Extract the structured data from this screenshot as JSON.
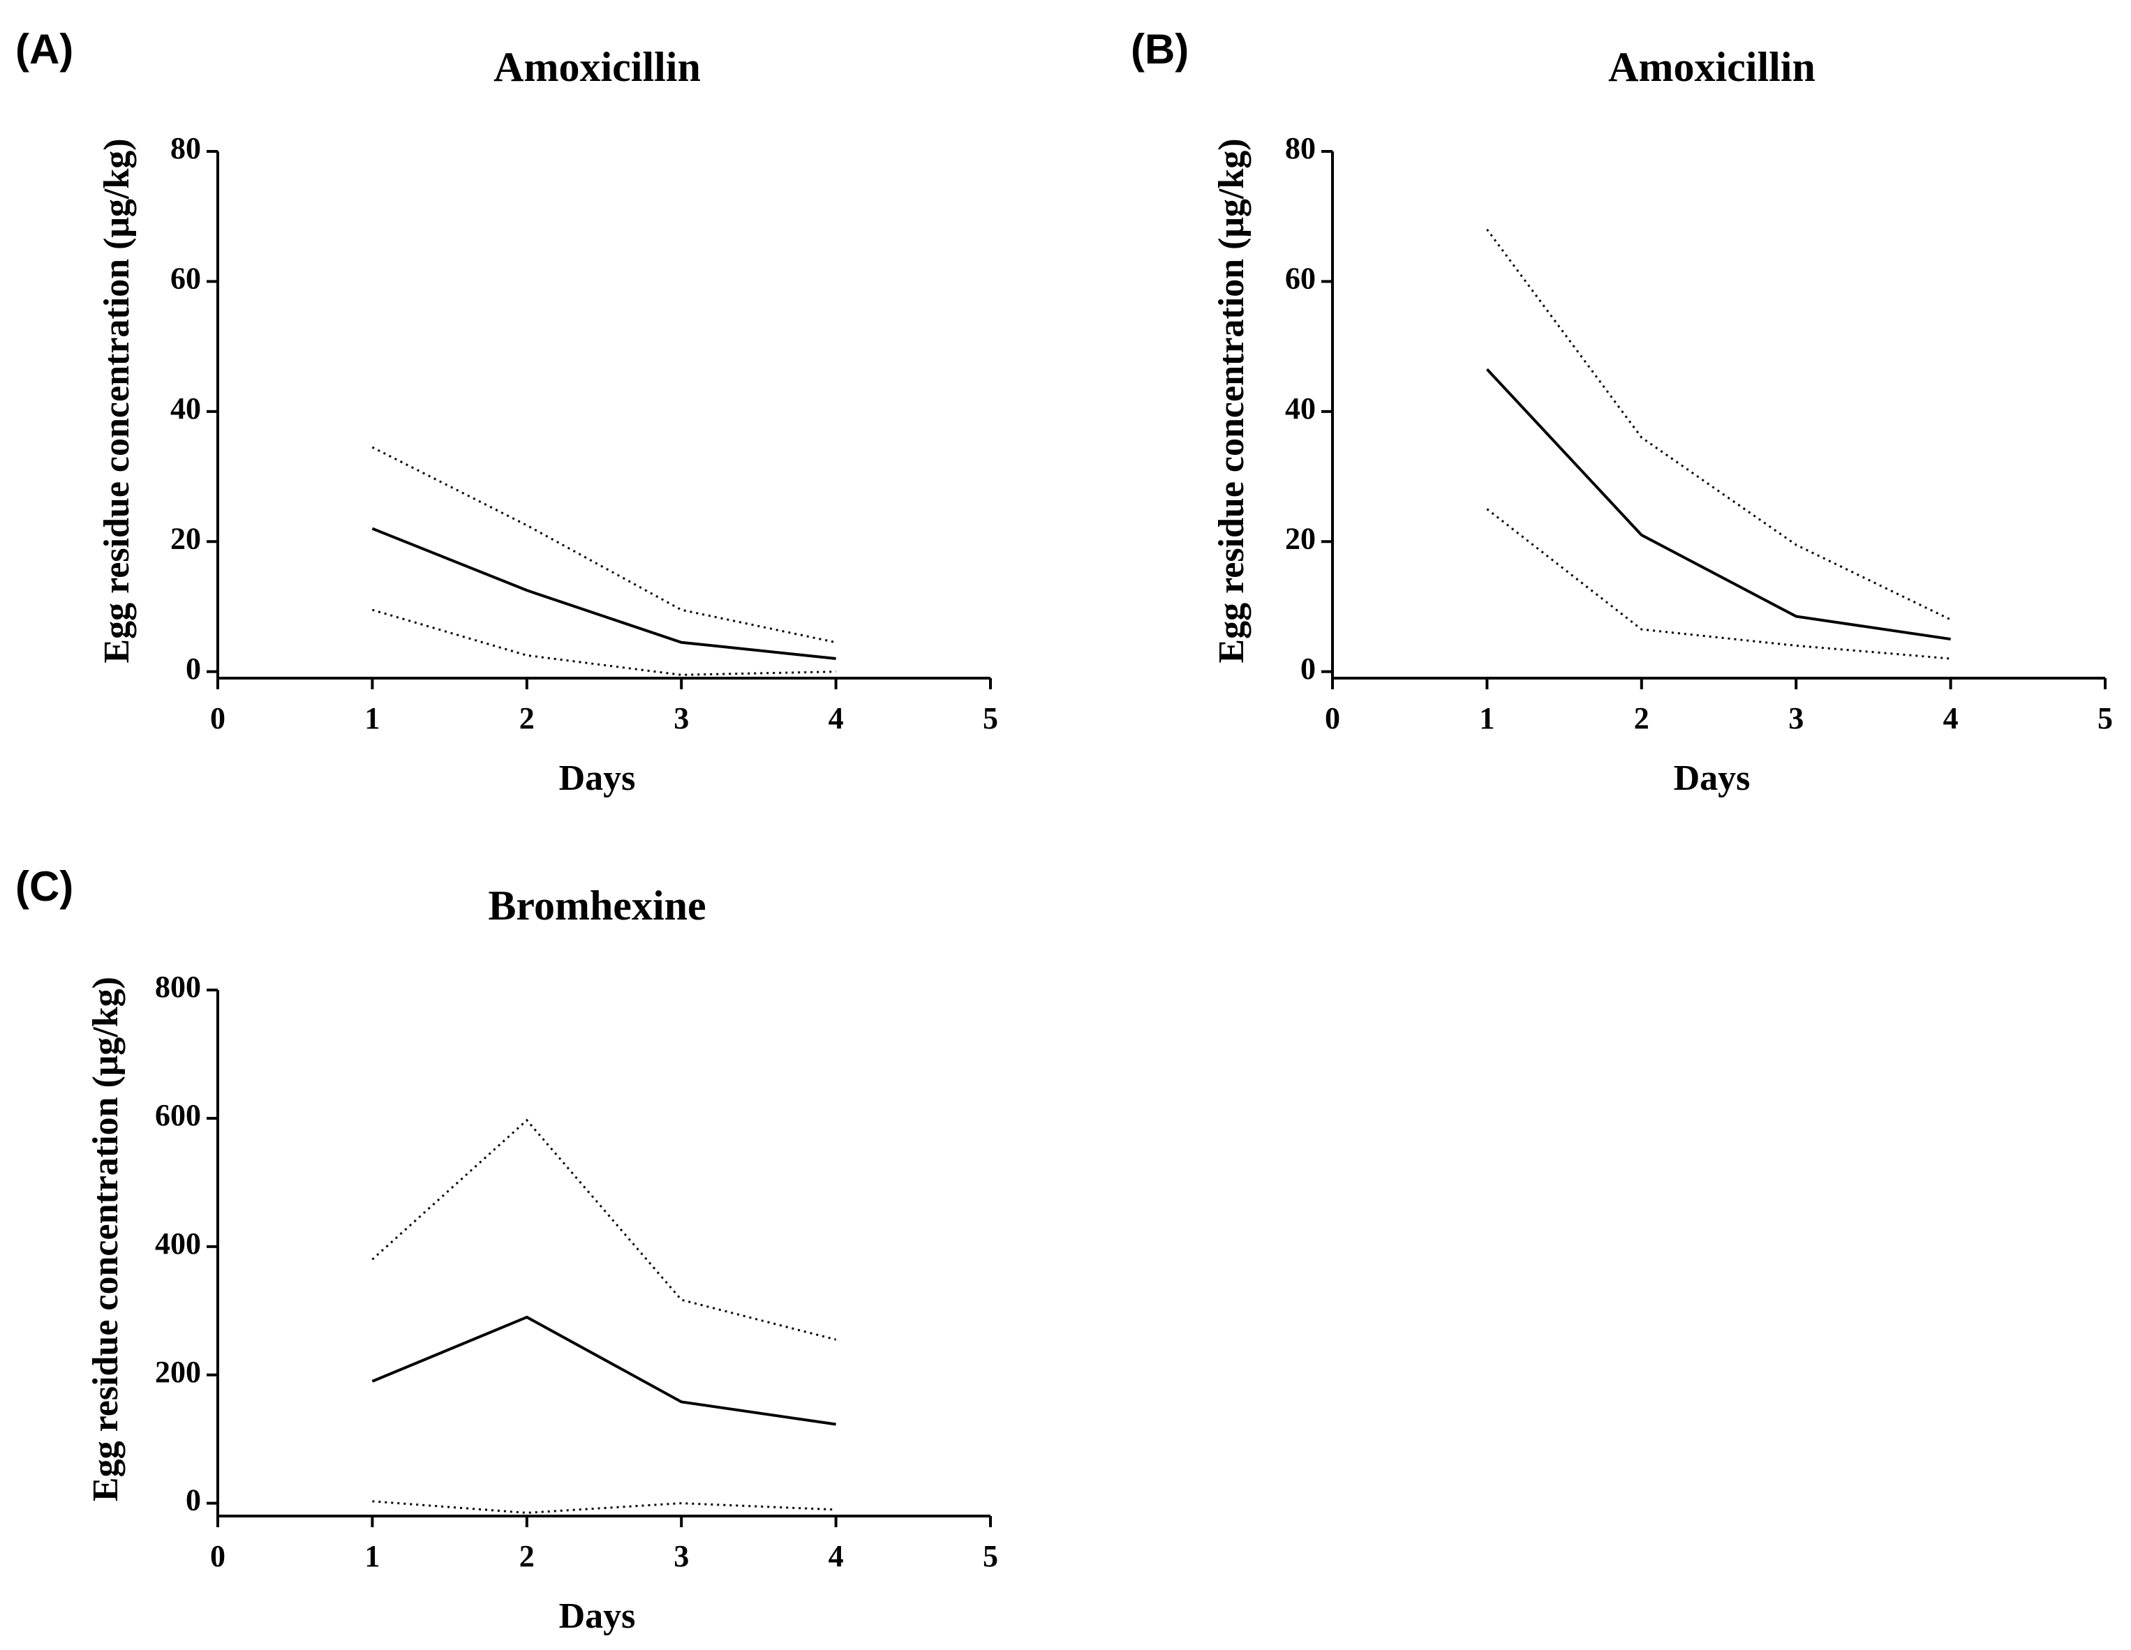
{
  "chart_data": [
    {
      "type": "line",
      "panel_label": "(A)",
      "title": "Amoxicillin",
      "x_label": "Days",
      "y_label": "Egg residue concentration (μg/kg)",
      "x": [
        1,
        2,
        3,
        4
      ],
      "series": [
        {
          "color": "#000000",
          "dash": "solid",
          "values": [
            22,
            12.5,
            4.5,
            2
          ]
        },
        {
          "color": "#000000",
          "dash": "dotted",
          "values": [
            34.5,
            22.5,
            9.5,
            4.5
          ]
        },
        {
          "color": "#000000",
          "dash": "dotted",
          "values": [
            9.5,
            2.5,
            -0.5,
            0
          ]
        }
      ],
      "xlim": [
        0,
        5
      ],
      "xticks": [
        0,
        1,
        2,
        3,
        4,
        5
      ],
      "ylim": [
        -1,
        80
      ],
      "yticks": [
        0,
        20,
        40,
        60,
        80
      ]
    },
    {
      "type": "line",
      "panel_label": "(B)",
      "title": "Amoxicillin",
      "x_label": "Days",
      "y_label": "Egg residue concentration (μg/kg)",
      "x": [
        1,
        2,
        3,
        4
      ],
      "series": [
        {
          "color": "#000000",
          "dash": "solid",
          "values": [
            46.5,
            21,
            8.5,
            5
          ]
        },
        {
          "color": "#000000",
          "dash": "dotted",
          "values": [
            68,
            36,
            19.5,
            8
          ]
        },
        {
          "color": "#000000",
          "dash": "dotted",
          "values": [
            25,
            6.5,
            4,
            2
          ]
        }
      ],
      "xlim": [
        0,
        5
      ],
      "xticks": [
        0,
        1,
        2,
        3,
        4,
        5
      ],
      "ylim": [
        -1,
        80
      ],
      "yticks": [
        0,
        20,
        40,
        60,
        80
      ]
    },
    {
      "type": "line",
      "panel_label": "(C)",
      "title": "Bromhexine",
      "x_label": "Days",
      "y_label": "Egg residue concentration (μg/kg)",
      "x": [
        1,
        2,
        3,
        4
      ],
      "series": [
        {
          "color": "#000000",
          "dash": "solid",
          "values": [
            190,
            290,
            158,
            123
          ]
        },
        {
          "color": "#000000",
          "dash": "dotted",
          "values": [
            380,
            597,
            317,
            255
          ]
        },
        {
          "color": "#000000",
          "dash": "dotted",
          "values": [
            3,
            -15,
            0,
            -10
          ]
        }
      ],
      "xlim": [
        0,
        5
      ],
      "xticks": [
        0,
        1,
        2,
        3,
        4,
        5
      ],
      "ylim": [
        -20,
        800
      ],
      "yticks": [
        0,
        200,
        400,
        600,
        800
      ]
    }
  ]
}
